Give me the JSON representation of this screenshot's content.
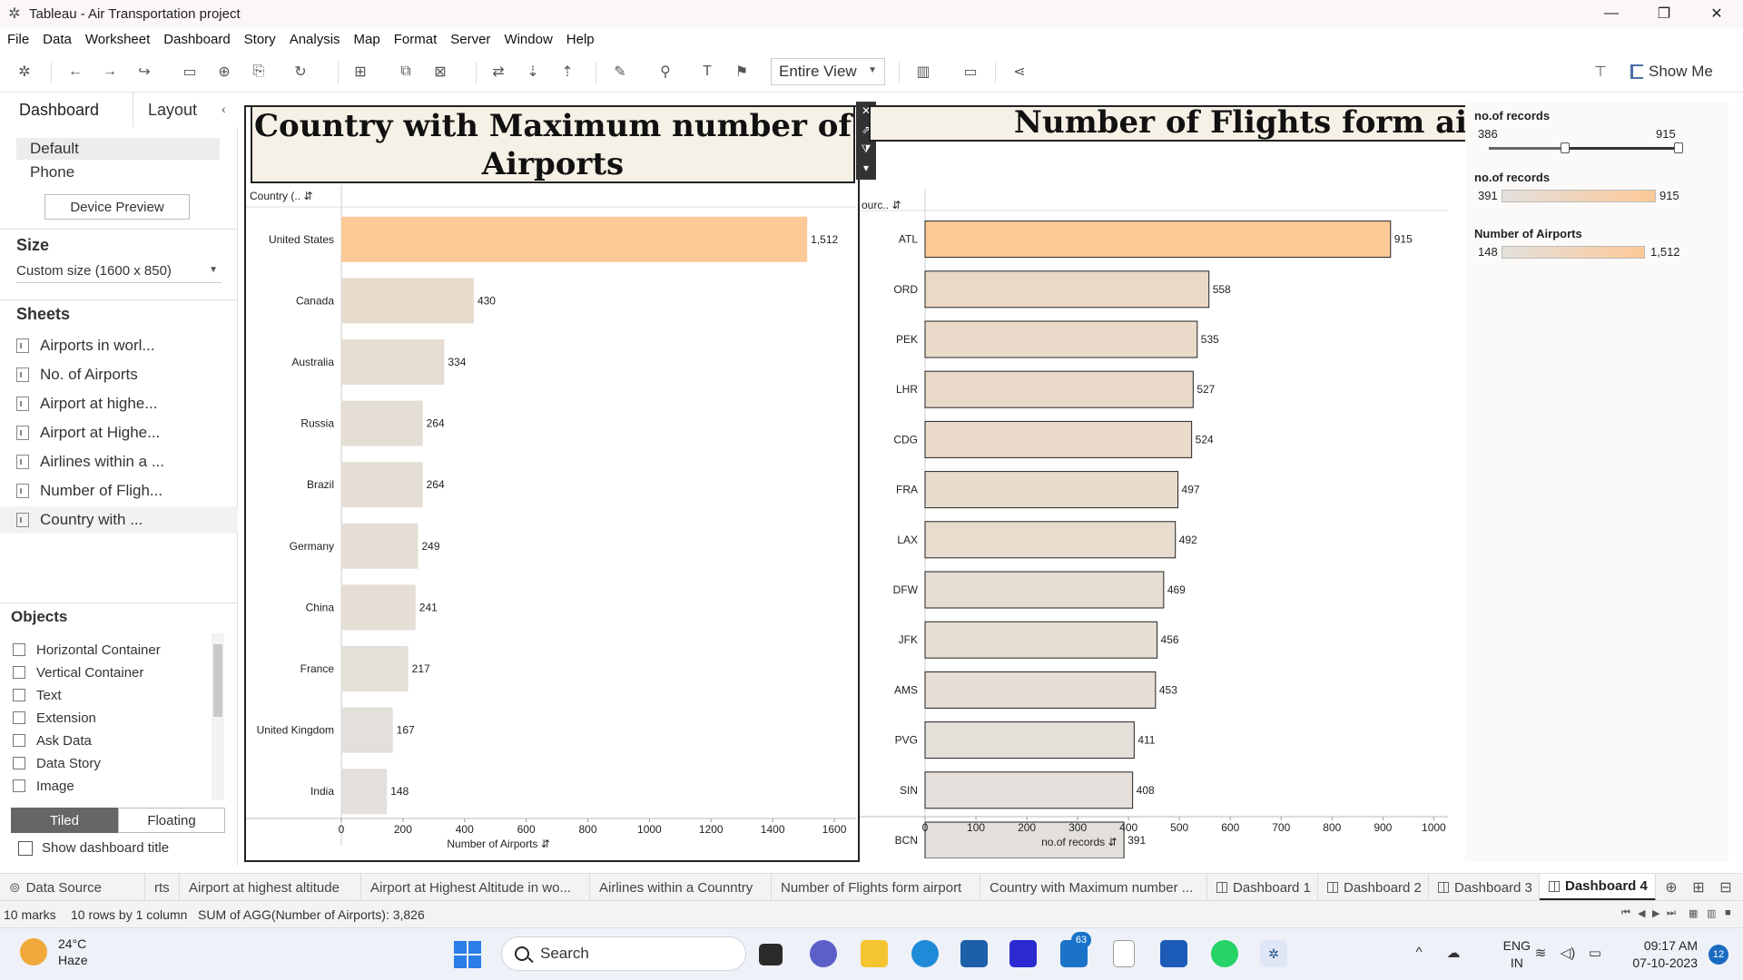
{
  "window": {
    "title": "Tableau - Air Transportation project",
    "minimize": "—",
    "maximize": "❐",
    "close": "✕"
  },
  "menu": [
    "File",
    "Data",
    "Worksheet",
    "Dashboard",
    "Story",
    "Analysis",
    "Map",
    "Format",
    "Server",
    "Window",
    "Help"
  ],
  "toolbar": {
    "fit_value": "Entire View",
    "show_me": "Show Me"
  },
  "left_panel": {
    "tabs": {
      "dashboard": "Dashboard",
      "layout": "Layout"
    },
    "devices": {
      "default": "Default",
      "phone": "Phone",
      "preview_button": "Device Preview"
    },
    "size_heading": "Size",
    "size_value": "Custom size (1600 x 850)",
    "sheets_heading": "Sheets",
    "sheets": [
      "Airports in worl...",
      "No. of Airports",
      "Airport at highe...",
      "Airport at Highe...",
      "Airlines within a ...",
      "Number of Fligh...",
      "Country with ..."
    ],
    "objects_heading": "Objects",
    "objects": [
      "Horizontal Container",
      "Vertical Container",
      "Text",
      "Extension",
      "Ask Data",
      "Data Story",
      "Image"
    ],
    "tiled": "Tiled",
    "floating": "Floating",
    "show_title": "Show dashboard title"
  },
  "dashboard": {
    "left_title": "Country with Maximum number of Airports",
    "right_title": "Number of Flights form airport"
  },
  "legends": {
    "slider_title": "no.of records",
    "slider_min": "386",
    "slider_max": "915",
    "ramp1_title": "no.of records",
    "ramp1_min": "391",
    "ramp1_max": "915",
    "ramp2_title": "Number of Airports",
    "ramp2_min": "148",
    "ramp2_max": "1,512"
  },
  "chart_data": [
    {
      "type": "bar",
      "orientation": "horizontal",
      "title": "Country with Maximum number of Airports",
      "row_header": "Country (..",
      "xlabel": "Number of Airports",
      "categories": [
        "United States",
        "Canada",
        "Australia",
        "Russia",
        "Brazil",
        "Germany",
        "China",
        "France",
        "United Kingdom",
        "India"
      ],
      "values": [
        1512,
        430,
        334,
        264,
        264,
        249,
        241,
        217,
        167,
        148
      ],
      "labels": [
        "1,512",
        "430",
        "334",
        "264",
        "264",
        "249",
        "241",
        "217",
        "167",
        "148"
      ],
      "xticks": [
        0,
        200,
        400,
        600,
        800,
        1000,
        1200,
        1400,
        1600
      ],
      "xlim": [
        0,
        1700
      ],
      "color_low": "#e3e0dc",
      "color_high": "#fdc997"
    },
    {
      "type": "bar",
      "orientation": "horizontal",
      "title": "Number of Flights form airport",
      "row_header": "ourc..",
      "xlabel": "no.of records",
      "categories": [
        "ATL",
        "ORD",
        "PEK",
        "LHR",
        "CDG",
        "FRA",
        "LAX",
        "DFW",
        "JFK",
        "AMS",
        "PVG",
        "SIN",
        "BCN"
      ],
      "values": [
        915,
        558,
        535,
        527,
        524,
        497,
        492,
        469,
        456,
        453,
        411,
        408,
        391
      ],
      "labels": [
        "915",
        "558",
        "535",
        "527",
        "524",
        "497",
        "492",
        "469",
        "456",
        "453",
        "411",
        "408",
        "391"
      ],
      "xticks": [
        0,
        100,
        200,
        300,
        400,
        500,
        600,
        700,
        800,
        900,
        1000
      ],
      "xlim": [
        0,
        1010
      ],
      "color_low": "#e3e0dc",
      "color_high": "#fdc997"
    }
  ],
  "sheet_tabs": [
    "Data Source",
    "rts",
    "Airport at highest altitude",
    "Airport at Highest Altitude in wo...",
    "Airlines within a Counntry",
    "Number of Flights form airport",
    "Country with Maximum number ...",
    "Dashboard 1",
    "Dashboard 2",
    "Dashboard 3",
    "Dashboard 4"
  ],
  "status": {
    "marks": "10 marks",
    "rows": "10 rows by 1 column",
    "sum": "SUM of AGG(Number of Airports): 3,826"
  },
  "taskbar": {
    "temp": "24°C",
    "weather": "Haze",
    "search": "Search",
    "teams_badge": "63",
    "lang1": "ENG",
    "lang2": "IN",
    "time": "09:17 AM",
    "date": "07-10-2023",
    "notif": "12"
  }
}
